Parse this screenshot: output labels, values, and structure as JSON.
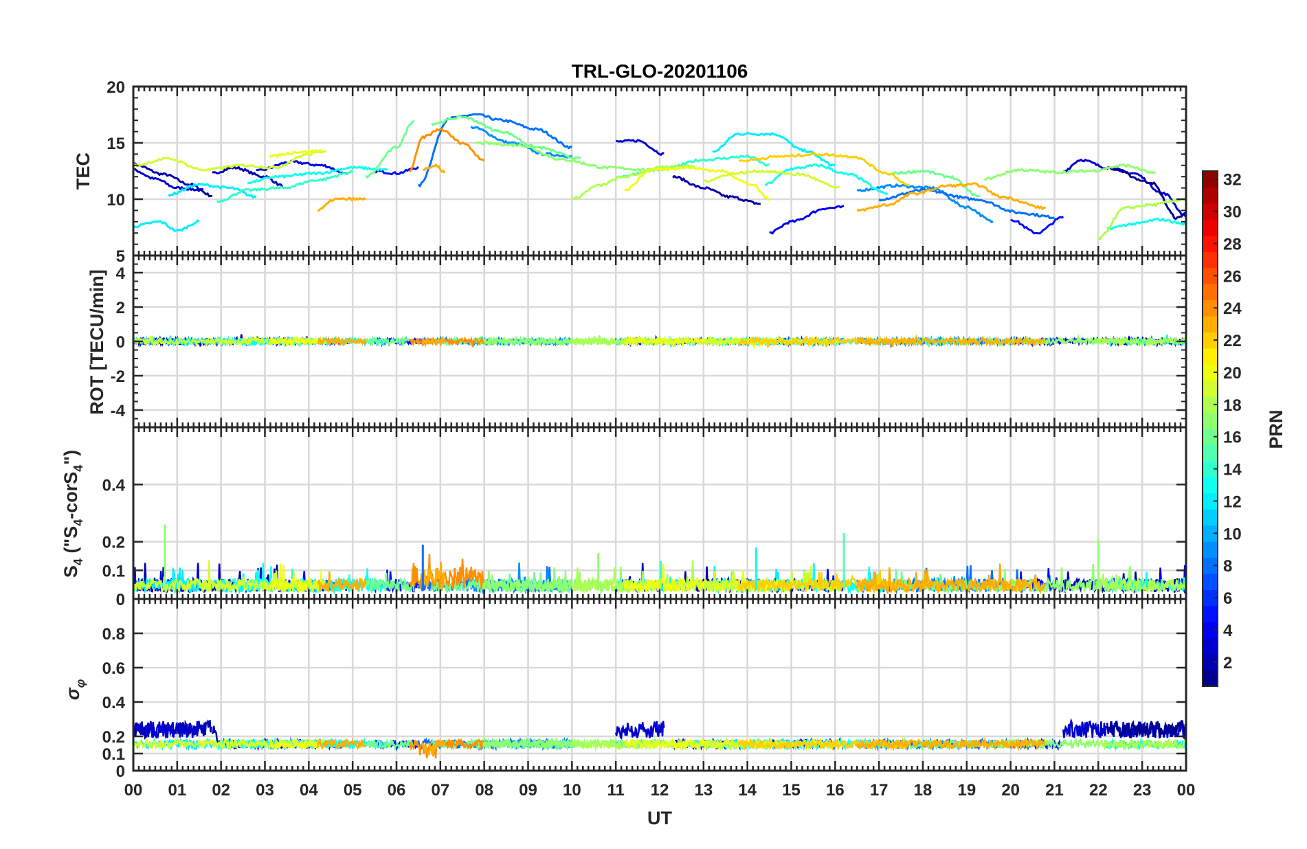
{
  "chart_data": {
    "type": "line",
    "title": "TRL-GLO-20201106",
    "xlabel": "UT",
    "x_tick_labels": [
      "00",
      "01",
      "02",
      "03",
      "04",
      "05",
      "06",
      "07",
      "08",
      "09",
      "10",
      "11",
      "12",
      "13",
      "14",
      "15",
      "16",
      "17",
      "18",
      "19",
      "20",
      "21",
      "22",
      "23",
      "00"
    ],
    "xlim": [
      0,
      24
    ],
    "grid": true,
    "colorbar": {
      "label": "PRN",
      "colormap": "jet",
      "range": [
        1,
        32
      ],
      "tick_labels": [
        "2",
        "4",
        "6",
        "8",
        "10",
        "12",
        "14",
        "16",
        "18",
        "20",
        "22",
        "24",
        "26",
        "28",
        "30",
        "32"
      ]
    },
    "panels": [
      {
        "id": "tec",
        "ylabel": "TEC",
        "ylim": [
          5,
          20
        ],
        "y_tick_labels": [
          "5",
          "10",
          "15",
          "20"
        ],
        "series": [
          {
            "prn": 2,
            "points": [
              [
                0,
                13.1
              ],
              [
                0.7,
                12.2
              ],
              [
                1.3,
                11.3
              ],
              [
                1.8,
                10.3
              ]
            ]
          },
          {
            "prn": 3,
            "points": [
              [
                0,
                12.6
              ],
              [
                0.5,
                11.8
              ],
              [
                1.0,
                11.0
              ],
              [
                1.6,
                10.8
              ]
            ]
          },
          {
            "prn": 2,
            "points": [
              [
                1.8,
                12.3
              ],
              [
                2.3,
                12.8
              ],
              [
                3.0,
                12.0
              ],
              [
                3.4,
                11.2
              ]
            ]
          },
          {
            "prn": 4,
            "points": [
              [
                2.8,
                12.5
              ],
              [
                3.6,
                13.3
              ],
              [
                4.3,
                13.0
              ],
              [
                4.9,
                12.2
              ]
            ]
          },
          {
            "prn": 5,
            "points": [
              [
                5.5,
                12.5
              ],
              [
                6.0,
                12.3
              ],
              [
                6.5,
                12.8
              ]
            ]
          },
          {
            "prn": 8,
            "points": [
              [
                6.5,
                11.2
              ],
              [
                7.2,
                17.2
              ],
              [
                7.8,
                17.5
              ],
              [
                8.4,
                17.0
              ],
              [
                9.2,
                16.2
              ],
              [
                10.0,
                14.6
              ]
            ]
          },
          {
            "prn": 9,
            "points": [
              [
                7.7,
                16.4
              ],
              [
                8.6,
                15.0
              ],
              [
                9.4,
                14.0
              ],
              [
                10.0,
                13.8
              ]
            ]
          },
          {
            "prn": 3,
            "points": [
              [
                11.0,
                15.1
              ],
              [
                11.5,
                15.2
              ],
              [
                12.1,
                14.0
              ]
            ]
          },
          {
            "prn": 2,
            "points": [
              [
                12.3,
                12.0
              ],
              [
                13.0,
                11.0
              ],
              [
                13.6,
                10.2
              ],
              [
                14.3,
                9.6
              ]
            ]
          },
          {
            "prn": 12,
            "points": [
              [
                13.2,
                14.2
              ],
              [
                13.8,
                15.8
              ],
              [
                14.6,
                15.8
              ],
              [
                15.3,
                14.3
              ],
              [
                16.0,
                13.0
              ]
            ]
          },
          {
            "prn": 4,
            "points": [
              [
                14.5,
                7.0
              ],
              [
                15.0,
                8.0
              ],
              [
                15.8,
                9.2
              ],
              [
                16.2,
                9.3
              ]
            ]
          },
          {
            "prn": 9,
            "points": [
              [
                16.5,
                10.8
              ],
              [
                17.4,
                11.2
              ],
              [
                18.2,
                11.0
              ],
              [
                19.0,
                9.3
              ],
              [
                19.6,
                8.0
              ]
            ]
          },
          {
            "prn": 8,
            "points": [
              [
                17.0,
                10.0
              ],
              [
                18.0,
                10.8
              ],
              [
                19.2,
                10.0
              ],
              [
                20.2,
                8.8
              ],
              [
                21.0,
                8.4
              ]
            ]
          },
          {
            "prn": 5,
            "points": [
              [
                20.0,
                8.2
              ],
              [
                20.6,
                7.0
              ],
              [
                21.2,
                8.4
              ]
            ]
          },
          {
            "prn": 3,
            "points": [
              [
                21.2,
                12.5
              ],
              [
                21.6,
                13.5
              ],
              [
                22.2,
                12.8
              ],
              [
                22.8,
                12.3
              ],
              [
                23.5,
                10.5
              ],
              [
                24.0,
                8.5
              ]
            ]
          },
          {
            "prn": 1,
            "points": [
              [
                22.2,
                12.8
              ],
              [
                23.2,
                11.5
              ],
              [
                23.8,
                8.3
              ],
              [
                24.0,
                8.8
              ]
            ]
          },
          {
            "prn": 12,
            "points": [
              [
                0,
                7.6
              ],
              [
                0.6,
                8.0
              ],
              [
                1.0,
                7.2
              ],
              [
                1.5,
                8.0
              ]
            ]
          },
          {
            "prn": 12,
            "points": [
              [
                0.8,
                10.4
              ],
              [
                1.5,
                11.3
              ],
              [
                2.2,
                11.0
              ],
              [
                2.8,
                10.2
              ]
            ]
          },
          {
            "prn": 14,
            "points": [
              [
                1.9,
                9.8
              ],
              [
                2.6,
                10.8
              ],
              [
                3.4,
                11.0
              ],
              [
                4.2,
                11.7
              ],
              [
                5.0,
                12.4
              ]
            ]
          },
          {
            "prn": 13,
            "points": [
              [
                2.6,
                11.5
              ],
              [
                3.3,
                12.0
              ],
              [
                4.2,
                12.3
              ],
              [
                5.0,
                12.8
              ],
              [
                5.8,
                12.6
              ]
            ]
          },
          {
            "prn": 16,
            "points": [
              [
                5.3,
                12.0
              ],
              [
                6.0,
                14.6
              ],
              [
                6.4,
                17.0
              ]
            ]
          },
          {
            "prn": 16,
            "points": [
              [
                6.8,
                16.7
              ],
              [
                7.5,
                17.3
              ],
              [
                8.4,
                16.0
              ],
              [
                9.2,
                14.6
              ],
              [
                10.2,
                13.6
              ]
            ]
          },
          {
            "prn": 17,
            "points": [
              [
                7.8,
                15.0
              ],
              [
                8.8,
                14.8
              ],
              [
                9.8,
                13.5
              ],
              [
                10.8,
                12.8
              ],
              [
                11.8,
                12.6
              ]
            ]
          },
          {
            "prn": 14,
            "points": [
              [
                11.0,
                12.0
              ],
              [
                12.0,
                12.6
              ],
              [
                13.0,
                13.5
              ],
              [
                14.0,
                13.8
              ],
              [
                14.5,
                13.0
              ]
            ]
          },
          {
            "prn": 13,
            "points": [
              [
                14.4,
                11.3
              ],
              [
                15.0,
                12.7
              ],
              [
                15.6,
                13.0
              ],
              [
                16.3,
                12.2
              ],
              [
                17.2,
                10.5
              ]
            ]
          },
          {
            "prn": 16,
            "points": [
              [
                17.3,
                12.3
              ],
              [
                18.0,
                12.5
              ],
              [
                18.6,
                12.0
              ],
              [
                19.3,
                10.2
              ]
            ]
          },
          {
            "prn": 17,
            "points": [
              [
                19.4,
                11.8
              ],
              [
                20.2,
                12.6
              ],
              [
                21.0,
                12.4
              ],
              [
                21.8,
                12.5
              ],
              [
                22.6,
                13.0
              ],
              [
                23.3,
                12.3
              ]
            ]
          },
          {
            "prn": 13,
            "points": [
              [
                22.2,
                7.4
              ],
              [
                22.8,
                7.8
              ],
              [
                23.4,
                8.2
              ],
              [
                24.0,
                7.8
              ]
            ]
          },
          {
            "prn": 19,
            "points": [
              [
                0,
                13.0
              ],
              [
                0.8,
                13.6
              ],
              [
                1.6,
                12.6
              ],
              [
                2.5,
                13.0
              ],
              [
                3.2,
                12.8
              ],
              [
                4.0,
                14.0
              ],
              [
                4.4,
                14.3
              ]
            ]
          },
          {
            "prn": 20,
            "points": [
              [
                3.1,
                13.8
              ],
              [
                3.8,
                14.2
              ],
              [
                4.3,
                14.3
              ]
            ]
          },
          {
            "prn": 18,
            "points": [
              [
                10.0,
                10.0
              ],
              [
                10.6,
                11.2
              ],
              [
                11.2,
                12.0
              ],
              [
                12.0,
                12.8
              ],
              [
                12.8,
                13.0
              ]
            ]
          },
          {
            "prn": 20,
            "points": [
              [
                11.2,
                10.8
              ],
              [
                11.8,
                12.6
              ],
              [
                12.6,
                12.8
              ],
              [
                13.4,
                12.5
              ],
              [
                14.1,
                11.3
              ],
              [
                14.5,
                10.0
              ]
            ]
          },
          {
            "prn": 19,
            "points": [
              [
                13.0,
                11.6
              ],
              [
                13.7,
                12.3
              ],
              [
                14.3,
                12.5
              ],
              [
                15.2,
                12.2
              ],
              [
                16.1,
                11.0
              ]
            ]
          },
          {
            "prn": 18,
            "points": [
              [
                22.0,
                6.5
              ],
              [
                22.6,
                9.2
              ],
              [
                23.2,
                9.5
              ],
              [
                24.0,
                10.0
              ]
            ]
          },
          {
            "prn": 23,
            "points": [
              [
                4.2,
                9.0
              ],
              [
                4.6,
                10.0
              ],
              [
                5.3,
                10.0
              ]
            ]
          },
          {
            "prn": 24,
            "points": [
              [
                6.3,
                12.5
              ],
              [
                6.6,
                15.5
              ],
              [
                7.0,
                16.2
              ],
              [
                7.5,
                15.0
              ],
              [
                8.0,
                13.5
              ]
            ]
          },
          {
            "prn": 23,
            "points": [
              [
                6.6,
                12.6
              ],
              [
                6.9,
                13.0
              ],
              [
                7.1,
                12.4
              ]
            ]
          },
          {
            "prn": 22,
            "points": [
              [
                13.8,
                13.4
              ],
              [
                14.8,
                13.8
              ],
              [
                15.6,
                14.0
              ],
              [
                16.4,
                13.8
              ],
              [
                17.2,
                12.3
              ],
              [
                17.7,
                11.2
              ]
            ]
          },
          {
            "prn": 23,
            "points": [
              [
                16.5,
                9.0
              ],
              [
                17.2,
                9.5
              ],
              [
                17.8,
                10.5
              ],
              [
                18.6,
                11.2
              ],
              [
                19.2,
                11.3
              ],
              [
                19.8,
                10.2
              ],
              [
                20.8,
                9.2
              ]
            ]
          }
        ]
      },
      {
        "id": "rot",
        "ylabel": "ROT [TECU/min]",
        "ylim": [
          -5,
          5
        ],
        "y_tick_labels": [
          "-4",
          "-2",
          "0",
          "2",
          "4"
        ],
        "note": "all PRNs fluctuate within about ±0.4 TECU/min around 0"
      },
      {
        "id": "s4",
        "ylabel": "S4 (\"S4-corS4\")",
        "ylim": [
          0,
          0.6
        ],
        "y_tick_labels": [
          "0",
          "0.1",
          "0.2",
          "0.4"
        ],
        "note": "background around 0.02-0.08, spikes up to 0.26 near 00:45 UT"
      },
      {
        "id": "sigma_phi",
        "ylabel": "σφ",
        "ylim": [
          0,
          1
        ],
        "y_tick_labels": [
          "0",
          "0.1",
          "0.2",
          "0.4",
          "0.6",
          "0.8"
        ],
        "note": "background around 0.13-0.2, PRN 1-3 elevated to ~0.3 near 00-02, 11-12 and 21-24 UT"
      }
    ]
  }
}
